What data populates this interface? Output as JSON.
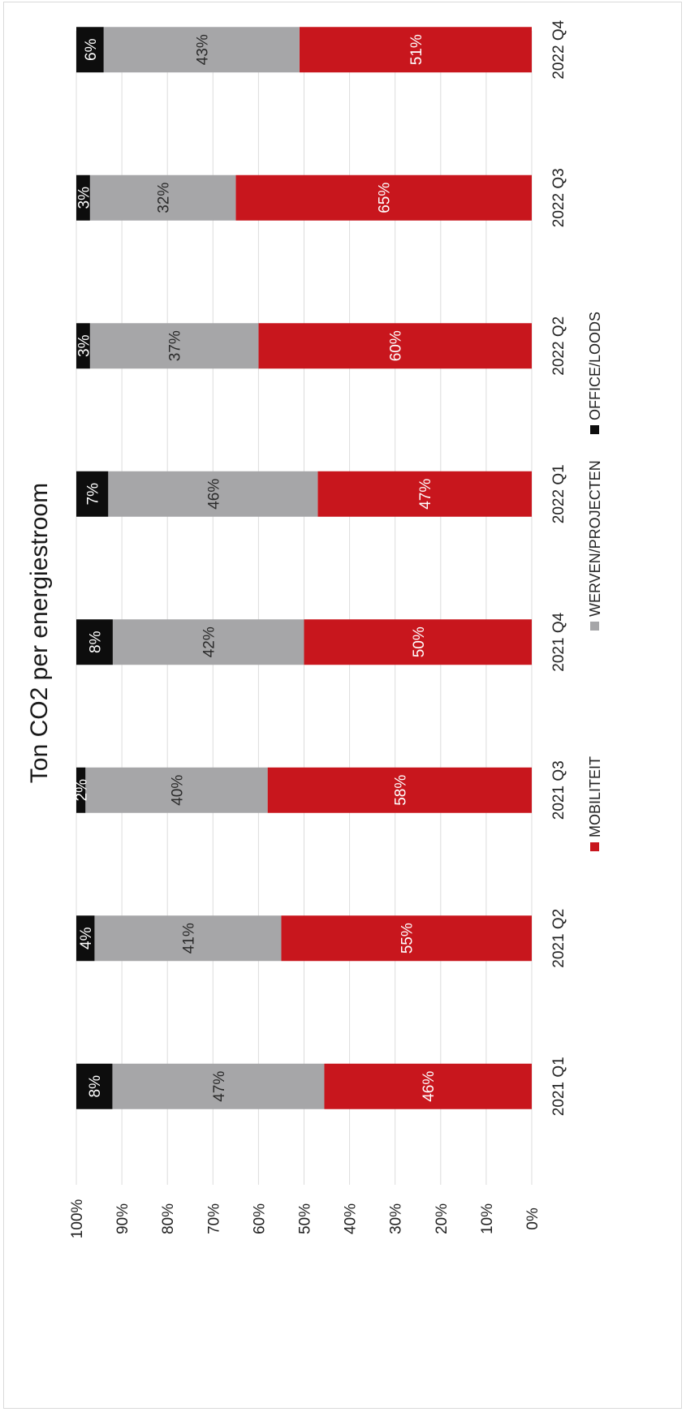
{
  "chart_data": {
    "type": "bar",
    "orientation": "stacked-percent",
    "title": "Ton CO2 per energiestroom",
    "categories": [
      "2021 Q1",
      "2021 Q2",
      "2021 Q3",
      "2021 Q4",
      "2022 Q1",
      "2022 Q2",
      "2022 Q3",
      "2022 Q4"
    ],
    "series": [
      {
        "name": "MOBILITEIT",
        "color": "#c8161d",
        "values": [
          46,
          55,
          58,
          50,
          47,
          60,
          65,
          51
        ],
        "labels": [
          "46%",
          "55%",
          "58%",
          "50%",
          "47%",
          "60%",
          "65%",
          "51%"
        ]
      },
      {
        "name": "WERVEN/PROJECTEN",
        "color": "#a6a6a8",
        "values": [
          47,
          41,
          40,
          42,
          46,
          37,
          32,
          43
        ],
        "labels": [
          "47%",
          "41%",
          "40%",
          "42%",
          "46%",
          "37%",
          "32%",
          "43%"
        ]
      },
      {
        "name": "OFFICE/LOODS",
        "color": "#0d0d0d",
        "values": [
          8,
          4,
          2,
          8,
          7,
          3,
          3,
          6
        ],
        "labels": [
          "8%",
          "4%",
          "2%",
          "8%",
          "7%",
          "3%",
          "3%",
          "6%"
        ]
      }
    ],
    "y_ticks": [
      "0%",
      "10%",
      "20%",
      "30%",
      "40%",
      "50%",
      "60%",
      "70%",
      "80%",
      "90%",
      "100%"
    ],
    "ylim": [
      0,
      100
    ],
    "grid": true,
    "legend_position": "bottom"
  }
}
